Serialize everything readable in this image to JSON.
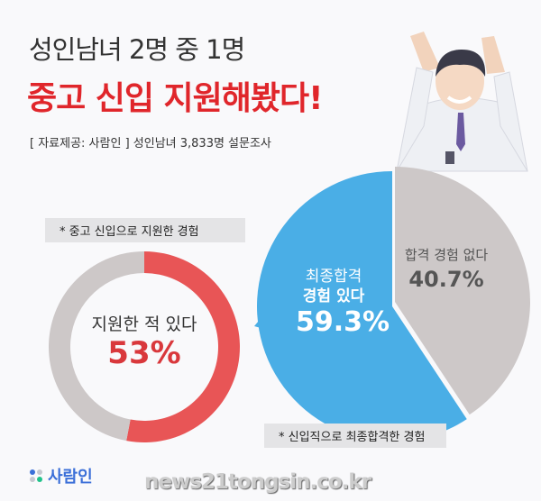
{
  "header": {
    "title_line1": "성인남녀 2명 중 1명",
    "title_line2": "중고 신입 지원해봤다!",
    "source": "[ 자료제공: 사람인 ] 성인남녀 3,833명 설문조사"
  },
  "colors": {
    "red": "#e85556",
    "gray": "#cdc8c8",
    "blue": "#4aaee6",
    "title_red": "#e0262b"
  },
  "chart_data": [
    {
      "type": "pie",
      "variant": "donut",
      "title": "* 중고 신입으로 지원한 경험",
      "slices": [
        {
          "label": "지원한 적 있다",
          "value": 53,
          "display": "53%",
          "color": "#e85556"
        },
        {
          "label": "",
          "value": 47,
          "color": "#cdc8c8"
        }
      ]
    },
    {
      "type": "pie",
      "title": "* 신입직으로 최종합격한 경험",
      "slices": [
        {
          "label": "합격 경험 없다",
          "value": 40.7,
          "display": "40.7%",
          "color": "#cdc8c8"
        },
        {
          "label_line1": "최종합격",
          "label_line2": "경험 있다",
          "value": 59.3,
          "display": "59.3%",
          "color": "#4aaee6"
        }
      ]
    }
  ],
  "footer": {
    "logo_text": "사람인",
    "watermark": "news21tongsin.co.kr"
  }
}
